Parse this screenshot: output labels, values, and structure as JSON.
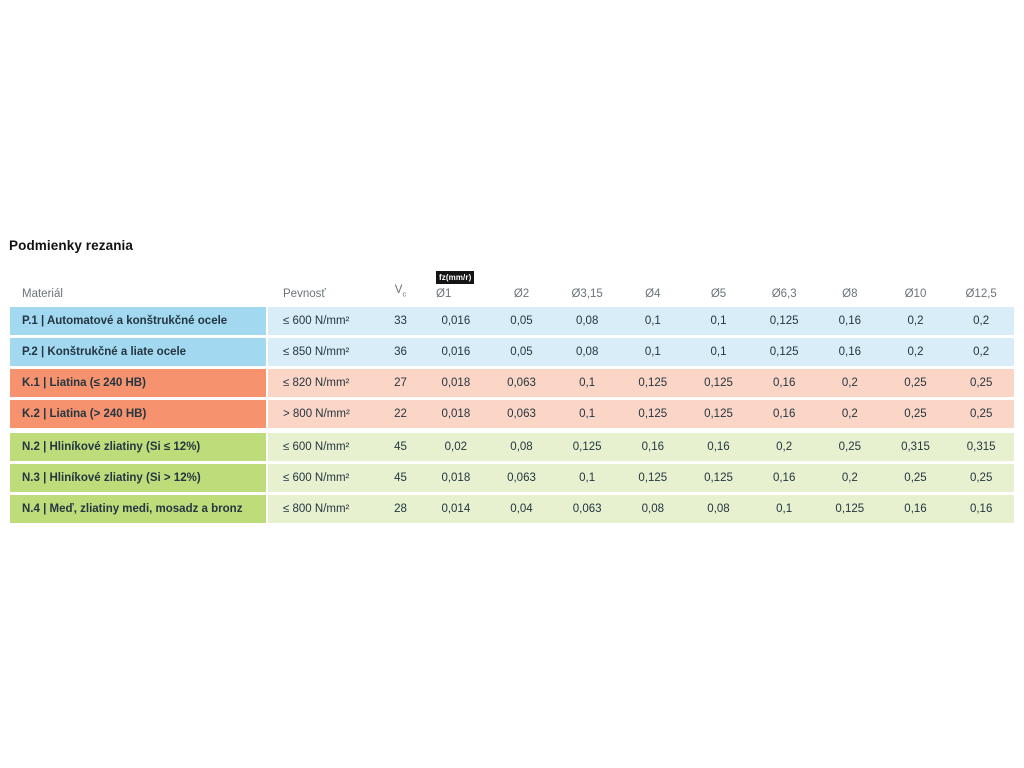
{
  "title": "Podmienky rezania",
  "table": {
    "headers": {
      "material": "Materiál",
      "pevnost": "Pevnosť",
      "vc_main": "V",
      "vc_sub": "c",
      "fz_badge": "fz(mm/r)",
      "diameters": [
        "Ø1",
        "Ø2",
        "Ø3,15",
        "Ø4",
        "Ø5",
        "Ø6,3",
        "Ø8",
        "Ø10",
        "Ø12,5"
      ]
    },
    "groups": {
      "p": {
        "dark": "#a2d8f0",
        "light": "#d8edf8"
      },
      "k": {
        "dark": "#f6936e",
        "light": "#fbd5c6"
      },
      "n": {
        "dark": "#bedc7a",
        "light": "#e7f0cf"
      }
    },
    "rows": [
      {
        "group": "p",
        "label": "P.1 | Automatové a konštrukčné ocele",
        "pevnost": "≤ 600 N/mm²",
        "vc": "33",
        "values": [
          "0,016",
          "0,05",
          "0,08",
          "0,1",
          "0,1",
          "0,125",
          "0,16",
          "0,2",
          "0,2"
        ]
      },
      {
        "group": "p",
        "label": "P.2 | Konštrukčné a liate ocele",
        "pevnost": "≤ 850 N/mm²",
        "vc": "36",
        "values": [
          "0,016",
          "0,05",
          "0,08",
          "0,1",
          "0,1",
          "0,125",
          "0,16",
          "0,2",
          "0,2"
        ]
      },
      {
        "group": "k",
        "label": "K.1 | Liatina (≤ 240 HB)",
        "pevnost": "≤ 820 N/mm²",
        "vc": "27",
        "values": [
          "0,018",
          "0,063",
          "0,1",
          "0,125",
          "0,125",
          "0,16",
          "0,2",
          "0,25",
          "0,25"
        ]
      },
      {
        "group": "k",
        "label": "K.2 | Liatina (> 240 HB)",
        "pevnost": "> 800 N/mm²",
        "vc": "22",
        "values": [
          "0,018",
          "0,063",
          "0,1",
          "0,125",
          "0,125",
          "0,16",
          "0,2",
          "0,25",
          "0,25"
        ]
      },
      {
        "group": "n",
        "label": "N.2 | Hliníkové zliatiny (Si ≤ 12%)",
        "pevnost": "≤ 600 N/mm²",
        "vc": "45",
        "values": [
          "0,02",
          "0,08",
          "0,125",
          "0,16",
          "0,16",
          "0,2",
          "0,25",
          "0,315",
          "0,315"
        ]
      },
      {
        "group": "n",
        "label": "N.3 | Hliníkové zliatiny (Si > 12%)",
        "pevnost": "≤ 600 N/mm²",
        "vc": "45",
        "values": [
          "0,018",
          "0,063",
          "0,1",
          "0,125",
          "0,125",
          "0,16",
          "0,2",
          "0,25",
          "0,25"
        ]
      },
      {
        "group": "n",
        "label": "N.4 | Meď, zliatiny medi, mosadz a bronz",
        "pevnost": "≤ 800 N/mm²",
        "vc": "28",
        "values": [
          "0,014",
          "0,04",
          "0,063",
          "0,08",
          "0,08",
          "0,1",
          "0,125",
          "0,16",
          "0,16"
        ]
      }
    ]
  }
}
